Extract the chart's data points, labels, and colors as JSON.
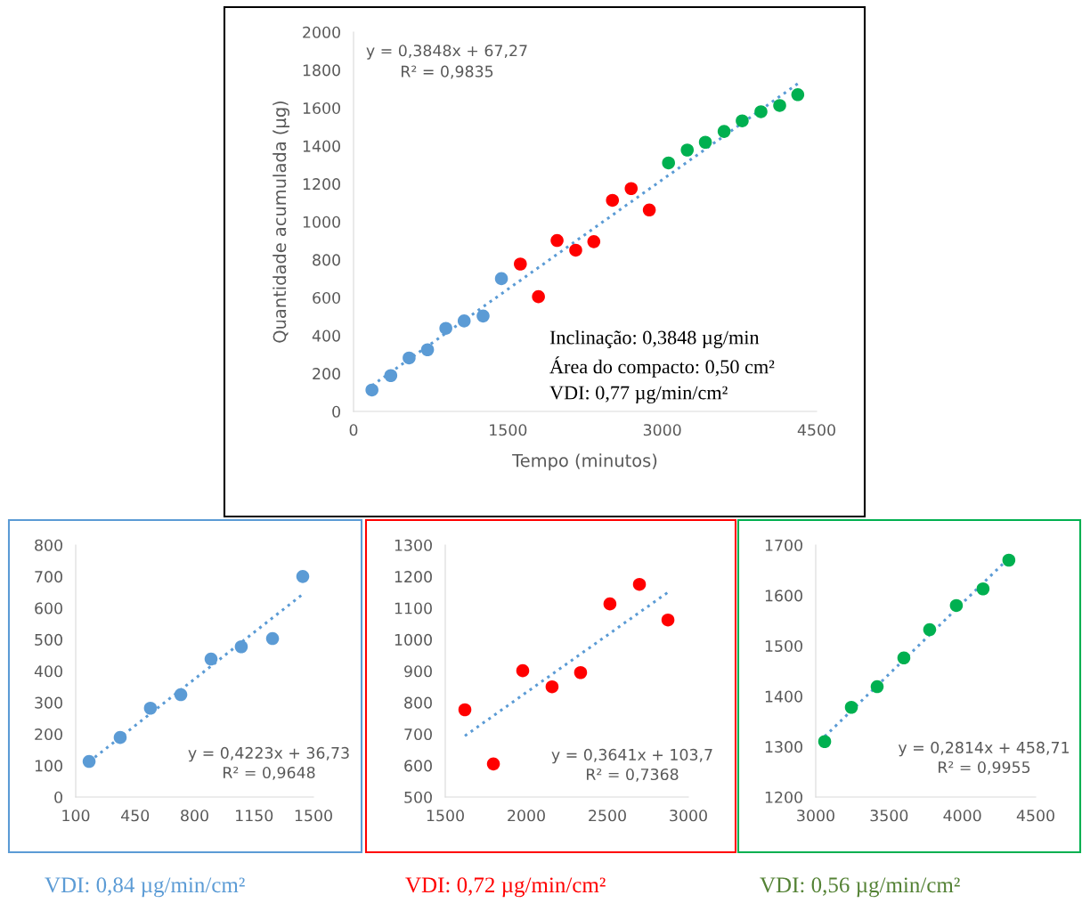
{
  "chart_data": [
    {
      "type": "scatter",
      "xlabel": "Tempo (minutos)",
      "ylabel": "Quantidade acumulada (µg)",
      "xlim": [
        0,
        4500
      ],
      "xticks": [
        0,
        1500,
        3000,
        4500
      ],
      "ylim": [
        0,
        2000
      ],
      "yticks": [
        0,
        200,
        400,
        600,
        800,
        1000,
        1200,
        1400,
        1600,
        1800,
        2000
      ],
      "grid": false,
      "marker": "circle",
      "series": [
        {
          "color": "#5b9bd5",
          "x": [
            179,
            362,
            540,
            719,
            897,
            1075,
            1259,
            1437
          ],
          "values": [
            113,
            189,
            282,
            325,
            438,
            477,
            503,
            700
          ]
        },
        {
          "color": "#ff0000",
          "x": [
            1621,
            1797,
            1978,
            2159,
            2335,
            2516,
            2698,
            2874
          ],
          "values": [
            777,
            605,
            901,
            850,
            895,
            1113,
            1175,
            1062
          ]
        },
        {
          "color": "#00b050",
          "x": [
            3061,
            3243,
            3419,
            3601,
            3777,
            3959,
            4141,
            4317
          ],
          "values": [
            1310,
            1378,
            1419,
            1476,
            1532,
            1580,
            1613,
            1670
          ]
        },
        {
          "type": "line",
          "line_style": "dotted",
          "marker": "none",
          "color": "#5b9bd5",
          "x": [
            179,
            4317
          ],
          "values": [
            136,
            1728
          ]
        }
      ],
      "annotations": [
        "y = 0,3848x + 67,27\nR² = 0,9835",
        "Inclinação: 0,3848 µg/min",
        "Área do compacto: 0,50 cm²",
        "VDI: 0,77 µg/min/cm²"
      ]
    },
    {
      "type": "scatter",
      "xlim": [
        100,
        1500
      ],
      "xticks": [
        100,
        450,
        800,
        1150,
        1500
      ],
      "ylim": [
        0,
        800
      ],
      "yticks": [
        0,
        100,
        200,
        300,
        400,
        500,
        600,
        700,
        800
      ],
      "grid": false,
      "marker": "circle",
      "series": [
        {
          "color": "#5b9bd5",
          "x": [
            179,
            362,
            540,
            719,
            897,
            1075,
            1259,
            1437
          ],
          "values": [
            113,
            189,
            282,
            325,
            438,
            477,
            503,
            700
          ]
        },
        {
          "type": "line",
          "line_style": "dotted",
          "marker": "none",
          "color": "#5b9bd5",
          "x": [
            179,
            1437
          ],
          "values": [
            112,
            644
          ]
        }
      ],
      "annotations": [
        "y = 0,4223x + 36,73\nR² = 0,9648",
        "VDI: 0,84 µg/min/cm²"
      ]
    },
    {
      "type": "scatter",
      "xlim": [
        1500,
        3000
      ],
      "xticks": [
        1500,
        2000,
        2500,
        3000
      ],
      "ylim": [
        500,
        1300
      ],
      "yticks": [
        500,
        600,
        700,
        800,
        900,
        1000,
        1100,
        1200,
        1300
      ],
      "grid": false,
      "marker": "circle",
      "series": [
        {
          "color": "#ff0000",
          "x": [
            1621,
            1797,
            1978,
            2159,
            2335,
            2516,
            2698,
            2874
          ],
          "values": [
            777,
            605,
            901,
            850,
            895,
            1113,
            1175,
            1062
          ]
        },
        {
          "type": "line",
          "line_style": "dotted",
          "marker": "none",
          "color": "#5b9bd5",
          "x": [
            1621,
            2874
          ],
          "values": [
            694,
            1150
          ]
        }
      ],
      "annotations": [
        "y = 0,3641x + 103,7\nR² = 0,7368",
        "VDI: 0,72 µg/min/cm²"
      ]
    },
    {
      "type": "scatter",
      "xlim": [
        3000,
        4500
      ],
      "xticks": [
        3000,
        3500,
        4000,
        4500
      ],
      "ylim": [
        1200,
        1700
      ],
      "yticks": [
        1200,
        1300,
        1400,
        1500,
        1600,
        1700
      ],
      "grid": false,
      "marker": "circle",
      "series": [
        {
          "color": "#00b050",
          "x": [
            3061,
            3243,
            3419,
            3601,
            3777,
            3959,
            4141,
            4317
          ],
          "values": [
            1310,
            1378,
            1419,
            1476,
            1532,
            1580,
            1613,
            1670
          ]
        },
        {
          "type": "line",
          "line_style": "dotted",
          "marker": "none",
          "color": "#5b9bd5",
          "x": [
            3061,
            4317
          ],
          "values": [
            1320,
            1674
          ]
        }
      ],
      "annotations": [
        "y = 0,2814x + 458,71\nR² = 0,9955",
        "VDI: 0,56 µg/min/cm²"
      ]
    }
  ]
}
